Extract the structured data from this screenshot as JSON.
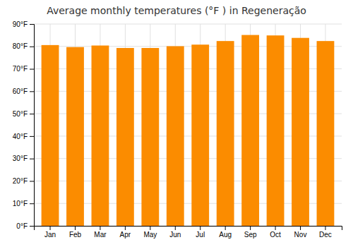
{
  "chart_data": {
    "type": "bar",
    "title": "Average monthly temperatures (°F ) in Regeneração",
    "categories": [
      "Jan",
      "Feb",
      "Mar",
      "Apr",
      "May",
      "Jun",
      "Jul",
      "Aug",
      "Sep",
      "Oct",
      "Nov",
      "Dec"
    ],
    "values": [
      80.6,
      79.7,
      80.4,
      79.3,
      79.3,
      80.1,
      80.8,
      82.4,
      85.1,
      84.9,
      83.8,
      82.4
    ],
    "color": "#FB8C00",
    "ylim": [
      0,
      90
    ],
    "yticks": [
      {
        "value": 0,
        "label": "0°F"
      },
      {
        "value": 10,
        "label": "10°F"
      },
      {
        "value": 20,
        "label": "20°F"
      },
      {
        "value": 30,
        "label": "30°F"
      },
      {
        "value": 40,
        "label": "40°F"
      },
      {
        "value": 50,
        "label": "50°F"
      },
      {
        "value": 60,
        "label": "60°F"
      },
      {
        "value": 70,
        "label": "70°F"
      },
      {
        "value": 80,
        "label": "80°F"
      },
      {
        "value": 90,
        "label": "90°F"
      }
    ],
    "grid": true
  }
}
